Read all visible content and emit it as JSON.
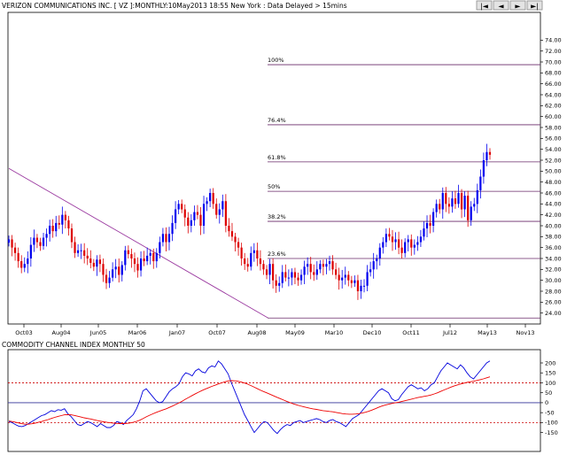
{
  "header": {
    "title": "VERIZON COMMUNICATIONS INC. [ VZ ]:MONTHLY:10May2013 18:55 New York : Data Delayed > 15mins",
    "nav_buttons": [
      {
        "icon": "skip-first-icon",
        "glyph": "|◄"
      },
      {
        "icon": "prev-icon",
        "glyph": "◄"
      },
      {
        "icon": "next-icon",
        "glyph": "►"
      },
      {
        "icon": "skip-last-icon",
        "glyph": "►|"
      }
    ]
  },
  "chart_data": [
    {
      "type": "candlestick",
      "title": "VERIZON COMMUNICATIONS INC. [ VZ ]:MONTHLY:10May2013 18:55 New York : Data Delayed > 15mins",
      "x_tick_labels": [
        "Oct03",
        "Aug04",
        "Jun05",
        "Mar06",
        "Jan07",
        "Oct07",
        "Aug08",
        "May09",
        "Mar10",
        "Dec10",
        "Oct11",
        "Jul12",
        "May13",
        "Nov13"
      ],
      "ylim": [
        22,
        76
      ],
      "y_tick_labels": [
        "24.00",
        "26.00",
        "28.00",
        "30.00",
        "32.00",
        "34.00",
        "36.00",
        "38.00",
        "40.00",
        "42.00",
        "44.00",
        "46.00",
        "48.00",
        "50.00",
        "52.00",
        "54.00",
        "56.00",
        "58.00",
        "60.00",
        "62.00",
        "64.00",
        "66.00",
        "68.00",
        "70.00",
        "72.00",
        "74.00"
      ],
      "up_color": "#0000ee",
      "down_color": "#dd0000",
      "fibonacci_levels": [
        {
          "label": "100%",
          "value": 69.5
        },
        {
          "label": "76.4%",
          "value": 58.5
        },
        {
          "label": "61.8%",
          "value": 51.7
        },
        {
          "label": "50%",
          "value": 46.3
        },
        {
          "label": "38.2%",
          "value": 40.8
        },
        {
          "label": "23.6%",
          "value": 34.0
        }
      ],
      "fib_line_color": "#6a2a6a",
      "trendline": {
        "from": {
          "month": 0,
          "price": 50.5
        },
        "to": {
          "month": 56,
          "price": 23.1
        },
        "color": "#9b3aa0"
      },
      "closes": [
        37.5,
        36.0,
        35.0,
        33.5,
        32.3,
        33.0,
        34.0,
        36.5,
        37.8,
        37.0,
        36.3,
        37.8,
        38.5,
        40.0,
        39.0,
        40.5,
        40.2,
        42.0,
        41.0,
        39.5,
        37.0,
        35.0,
        35.5,
        35.5,
        34.5,
        34.0,
        33.2,
        32.5,
        33.8,
        33.0,
        31.0,
        29.5,
        30.5,
        32.0,
        32.5,
        31.0,
        32.8,
        35.5,
        34.8,
        34.0,
        33.0,
        31.8,
        34.0,
        33.5,
        34.5,
        35.0,
        33.5,
        35.0,
        37.0,
        38.5,
        37.0,
        38.5,
        40.5,
        43.0,
        44.0,
        43.0,
        41.5,
        40.0,
        41.0,
        42.5,
        42.0,
        40.0,
        44.0,
        44.5,
        46.0,
        44.0,
        42.0,
        43.0,
        44.5,
        40.0,
        39.0,
        38.0,
        37.0,
        36.0,
        34.0,
        33.0,
        32.5,
        35.0,
        35.5,
        34.0,
        33.0,
        32.0,
        31.0,
        33.0,
        30.0,
        29.0,
        29.5,
        31.5,
        30.5,
        30.5,
        31.5,
        30.5,
        30.0,
        31.0,
        32.5,
        33.0,
        31.5,
        31.0,
        32.0,
        33.0,
        32.5,
        33.0,
        33.5,
        32.0,
        31.0,
        30.0,
        30.5,
        31.0,
        30.0,
        29.5,
        30.0,
        28.0,
        29.0,
        29.0,
        31.5,
        32.0,
        33.5,
        34.0,
        36.0,
        37.0,
        38.5,
        38.0,
        37.0,
        37.5,
        36.0,
        35.0,
        37.0,
        37.5,
        36.0,
        36.5,
        37.0,
        38.0,
        39.5,
        40.5,
        40.0,
        42.5,
        44.0,
        43.0,
        46.0,
        44.0,
        43.5,
        45.0,
        44.0,
        46.0,
        43.0,
        45.5,
        41.0,
        43.5,
        44.0,
        46.5,
        49.0,
        52.0,
        53.5,
        53.0
      ]
    },
    {
      "type": "line",
      "title": "COMMODITY CHANNEL INDEX MONTHLY 50",
      "ylim": [
        -175,
        250
      ],
      "y_tick_labels": [
        "200",
        "150",
        "100",
        "50",
        "0",
        "-50",
        "-100",
        "-150"
      ],
      "reference_lines": [
        {
          "value": 100,
          "style": "dashed",
          "color": "#cc0000"
        },
        {
          "value": 0,
          "style": "solid",
          "color": "#333399"
        },
        {
          "value": -100,
          "style": "dashed",
          "color": "#cc0000"
        }
      ],
      "series": [
        {
          "key": "cci",
          "color": "#0000dd",
          "values": [
            -95,
            -100,
            -110,
            -118,
            -120,
            -115,
            -105,
            -95,
            -85,
            -75,
            -65,
            -60,
            -50,
            -40,
            -45,
            -35,
            -38,
            -30,
            -55,
            -70,
            -90,
            -110,
            -115,
            -105,
            -95,
            -100,
            -110,
            -120,
            -105,
            -115,
            -125,
            -125,
            -115,
            -95,
            -100,
            -110,
            -90,
            -75,
            -60,
            -30,
            10,
            60,
            70,
            50,
            30,
            10,
            0,
            5,
            30,
            55,
            70,
            80,
            95,
            130,
            150,
            145,
            135,
            160,
            170,
            155,
            150,
            175,
            185,
            180,
            210,
            195,
            170,
            145,
            100,
            60,
            20,
            -20,
            -60,
            -90,
            -120,
            -150,
            -130,
            -110,
            -95,
            -100,
            -120,
            -140,
            -155,
            -135,
            -120,
            -110,
            -115,
            -100,
            -95,
            -90,
            -100,
            -95,
            -90,
            -85,
            -80,
            -85,
            -95,
            -100,
            -90,
            -85,
            -95,
            -100,
            -110,
            -120,
            -100,
            -80,
            -70,
            -60,
            -40,
            -20,
            0,
            20,
            40,
            60,
            70,
            60,
            50,
            20,
            10,
            15,
            40,
            60,
            80,
            90,
            80,
            70,
            75,
            60,
            70,
            90,
            100,
            130,
            160,
            180,
            200,
            190,
            180,
            170,
            190,
            175,
            150,
            130,
            120,
            140,
            160,
            180,
            200,
            210
          ]
        },
        {
          "key": "cci_average",
          "color": "#ee0000",
          "values": [
            -92,
            -95,
            -98,
            -102,
            -106,
            -108,
            -108,
            -106,
            -103,
            -99,
            -95,
            -90,
            -85,
            -79,
            -74,
            -69,
            -65,
            -61,
            -60,
            -61,
            -64,
            -68,
            -72,
            -76,
            -79,
            -82,
            -86,
            -90,
            -93,
            -96,
            -99,
            -101,
            -103,
            -104,
            -105,
            -105,
            -104,
            -102,
            -99,
            -94,
            -88,
            -80,
            -71,
            -63,
            -56,
            -49,
            -43,
            -37,
            -31,
            -24,
            -17,
            -9,
            -1,
            8,
            18,
            27,
            36,
            45,
            53,
            61,
            68,
            75,
            82,
            88,
            94,
            100,
            105,
            109,
            111,
            110,
            108,
            104,
            99,
            93,
            86,
            78,
            70,
            62,
            55,
            48,
            41,
            34,
            27,
            20,
            13,
            6,
            0,
            -6,
            -11,
            -16,
            -20,
            -24,
            -28,
            -31,
            -34,
            -37,
            -40,
            -42,
            -44,
            -46,
            -49,
            -52,
            -55,
            -57,
            -58,
            -58,
            -57,
            -55,
            -52,
            -48,
            -43,
            -37,
            -30,
            -23,
            -17,
            -12,
            -8,
            -4,
            -1,
            2,
            6,
            10,
            14,
            18,
            22,
            26,
            29,
            32,
            35,
            39,
            44,
            50,
            57,
            64,
            71,
            78,
            84,
            89,
            94,
            98,
            102,
            105,
            108,
            112,
            116,
            120,
            125,
            130
          ]
        }
      ]
    }
  ]
}
